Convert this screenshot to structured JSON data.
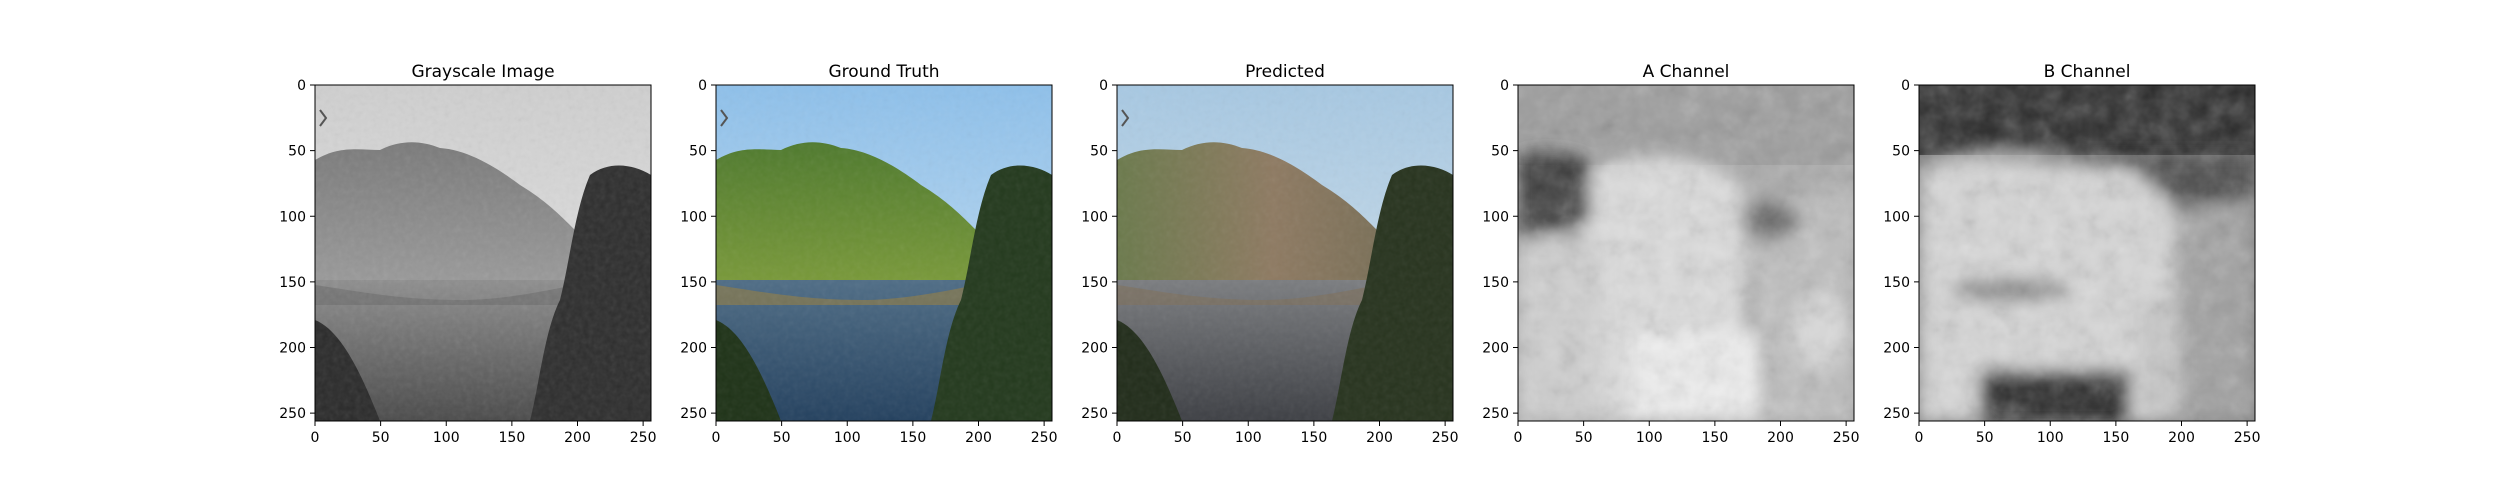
{
  "figure": {
    "panels": [
      {
        "title": "Grayscale Image",
        "image": "grayscale lake and forested hill",
        "x_ticks": [
          "0",
          "50",
          "100",
          "150",
          "200",
          "250"
        ],
        "y_ticks": [
          "0",
          "50",
          "100",
          "150",
          "200",
          "250"
        ]
      },
      {
        "title": "Ground Truth",
        "image": "color lake with green hill and blue sky",
        "x_ticks": [
          "0",
          "50",
          "100",
          "150",
          "200",
          "250"
        ],
        "y_ticks": [
          "0",
          "50",
          "100",
          "150",
          "200",
          "250"
        ]
      },
      {
        "title": "Predicted",
        "image": "colorized lake with muted green-brown hill",
        "x_ticks": [
          "0",
          "50",
          "100",
          "150",
          "200",
          "250"
        ],
        "y_ticks": [
          "0",
          "50",
          "100",
          "150",
          "200",
          "250"
        ]
      },
      {
        "title": "A Channel",
        "image": "A channel grayscale map",
        "x_ticks": [
          "0",
          "50",
          "100",
          "150",
          "200",
          "250"
        ],
        "y_ticks": [
          "0",
          "50",
          "100",
          "150",
          "200",
          "250"
        ]
      },
      {
        "title": "B Channel",
        "image": "B channel grayscale map",
        "x_ticks": [
          "0",
          "50",
          "100",
          "150",
          "200",
          "250"
        ],
        "y_ticks": [
          "0",
          "50",
          "100",
          "150",
          "200",
          "250"
        ]
      }
    ]
  }
}
